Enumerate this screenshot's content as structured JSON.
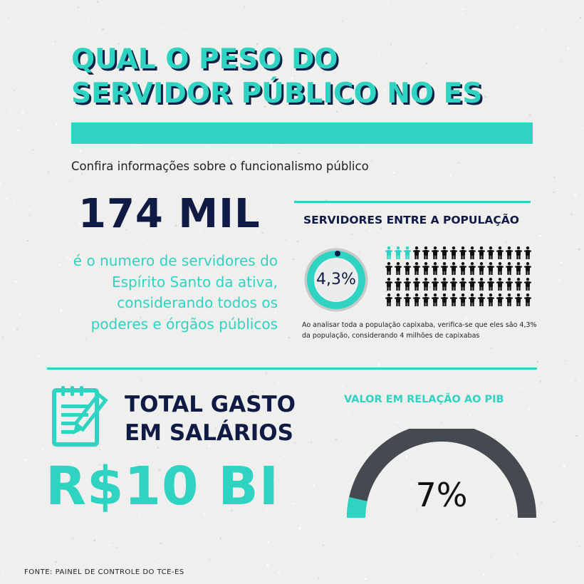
{
  "title": {
    "line1": "QUAL O PESO DO",
    "line2": "SERVIDOR PÚBLICO NO ES"
  },
  "subtitle": "Confira informações sobre o funcionalismo público",
  "servants": {
    "count": "174 MIL",
    "description": "é o numero de servidores do Espírito Santo da ativa, considerando todos os poderes e órgãos públicos"
  },
  "population": {
    "heading": "SERVIDORES ENTRE A POPULAÇÃO",
    "percent_label": "4,3%",
    "percent_value": 4.3,
    "pictogram_total": 64,
    "pictogram_highlighted": 3,
    "note": "Ao analisar toda a população capixaba, verifica-se que eles são 4,3% da população, considerando 4 milhões de capixabas"
  },
  "spending": {
    "heading_line1": "TOTAL GASTO",
    "heading_line2": "EM SALÁRIOS",
    "value": "R$10 BI"
  },
  "pib": {
    "heading": "VALOR EM RELAÇÃO AO PIB",
    "percent_label": "7%",
    "percent_value": 7
  },
  "source": "FONTE: PAINEL DE CONTROLE DO TCE-ES",
  "colors": {
    "accent": "#2ed3c2",
    "navy": "#0f1a45",
    "gauge_track": "#454a51",
    "ring_track": "#c9c9c9"
  },
  "icons": {
    "notepad": "notepad-pencil-icon",
    "person": "person-icon"
  }
}
